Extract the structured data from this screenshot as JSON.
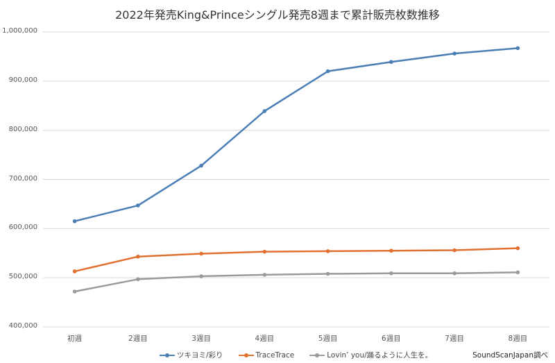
{
  "chart_data": {
    "type": "line",
    "title": "2022年発売King&Princeシングル発売8週まで累計販売枚数推移",
    "xlabel": "",
    "ylabel": "",
    "categories": [
      "初週",
      "2週目",
      "3週目",
      "4週目",
      "5週目",
      "6週目",
      "7週目",
      "8週目"
    ],
    "ylim": [
      400000,
      1000000
    ],
    "yticks": [
      "1,000,000",
      "900,000",
      "800,000",
      "700,000",
      "600,000",
      "500,000",
      "400,000"
    ],
    "grid": true,
    "legend_position": "bottom",
    "series": [
      {
        "name": "ツキヨミ/彩り",
        "color": "#4a7eb5",
        "values": [
          615000,
          647000,
          728000,
          839000,
          920000,
          939000,
          956000,
          967000
        ]
      },
      {
        "name": "TraceTrace",
        "color": "#e07030",
        "values": [
          513000,
          543000,
          549000,
          553000,
          554000,
          555000,
          556000,
          560000
        ]
      },
      {
        "name": "Lovin' you/踊るように人生を。",
        "color": "#9a9a9a",
        "values": [
          472000,
          497000,
          503000,
          506000,
          508000,
          509000,
          509000,
          511000
        ]
      }
    ],
    "annotations": [
      "SoundScanJapan調べ"
    ]
  },
  "legend": {
    "items": [
      "ツキヨミ/彩り",
      "TraceTrace",
      "Lovin’ you/踊るように人生を。"
    ]
  },
  "source": "SoundScanJapan調べ"
}
